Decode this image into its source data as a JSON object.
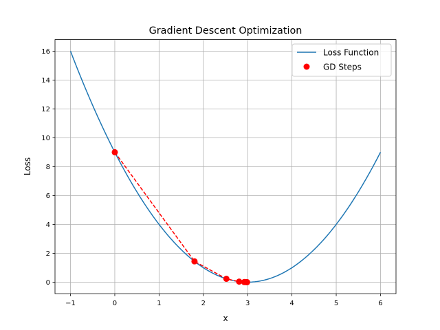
{
  "chart_data": {
    "type": "line",
    "title": "Gradient Descent Optimization",
    "xlabel": "x",
    "ylabel": "Loss",
    "xlim": [
      -1.35,
      6.35
    ],
    "ylim": [
      -0.8,
      16.8
    ],
    "xticks": [
      -1,
      0,
      1,
      2,
      3,
      4,
      5,
      6
    ],
    "yticks": [
      0,
      2,
      4,
      6,
      8,
      10,
      12,
      14,
      16
    ],
    "grid": true,
    "legend_position": "top-right",
    "series": [
      {
        "name": "Loss Function",
        "kind": "line",
        "function": "(x-3)^2",
        "x_range": [
          -1,
          6
        ],
        "color": "#1f77b4"
      },
      {
        "name": "GD Steps",
        "kind": "scatter",
        "x": [
          0,
          1.8,
          2.52,
          2.808,
          2.9232,
          2.96928,
          2.98771
        ],
        "y": [
          9,
          1.44,
          0.2304,
          0.0369,
          0.0059,
          0.0009,
          0.0002
        ],
        "color": "#ff0000",
        "connector": "dashed"
      }
    ]
  }
}
